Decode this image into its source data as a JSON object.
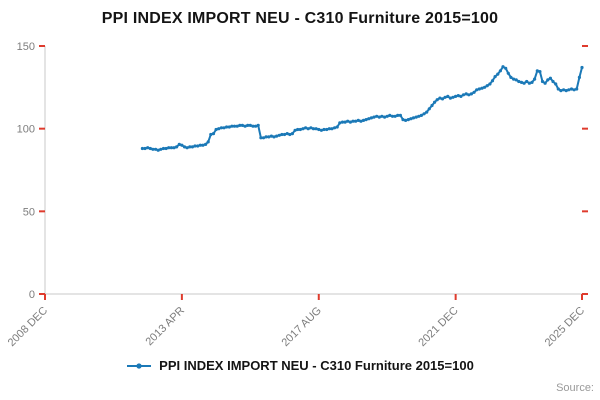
{
  "title": "PPI INDEX IMPORT NEU - C310 Furniture 2015=100",
  "legend": {
    "label": "PPI INDEX IMPORT NEU - C310 Furniture 2015=100"
  },
  "source": {
    "label": "Source:"
  },
  "chart_data": {
    "type": "line",
    "title": "PPI INDEX IMPORT NEU - C310 Furniture 2015=100",
    "xlabel": "",
    "ylabel": "",
    "ylim": [
      0,
      150
    ],
    "yticks": [
      0,
      50,
      100,
      150
    ],
    "grid": false,
    "legend_position": "bottom",
    "colors": {
      "line": "#1b79b7",
      "tick": "#df3b2d",
      "axis": "#c8c8c8",
      "label": "#7d7d7d"
    },
    "x_axis": {
      "start_date": "2008-12",
      "end_date": "2025-12",
      "total_months": 204
    },
    "xticks": [
      {
        "label": "2008 DEC",
        "date": "2008-12",
        "offset": 0
      },
      {
        "label": "2013 APR",
        "date": "2013-04",
        "offset": 52
      },
      {
        "label": "2017 AUG",
        "date": "2017-08",
        "offset": 104
      },
      {
        "label": "2021 DEC",
        "date": "2021-12",
        "offset": 156
      },
      {
        "label": "2025 DEC",
        "date": "2025-12",
        "offset": 204
      }
    ],
    "series": [
      {
        "name": "PPI INDEX IMPORT NEU - C310 Furniture 2015=100",
        "start_date": "2012-01",
        "start_month_offset": 37,
        "frequency": "monthly",
        "monthly_values": [
          88,
          88,
          88.5,
          88,
          87.5,
          87.5,
          87,
          87.5,
          88,
          88,
          88.5,
          88.5,
          88.5,
          89,
          90.5,
          90,
          89,
          88.5,
          89,
          89,
          89.5,
          89.5,
          90,
          90,
          90.5,
          92,
          96.5,
          97,
          99.5,
          100,
          100.5,
          100.5,
          101,
          101,
          101.5,
          101.5,
          101.5,
          102,
          102,
          101.5,
          102,
          102,
          101.5,
          101.5,
          102,
          94.5,
          94.5,
          95,
          95,
          95.5,
          95,
          95.5,
          96,
          96.5,
          96.5,
          97,
          96.5,
          97,
          99,
          99.5,
          99.5,
          100,
          100.5,
          100,
          100.5,
          100,
          100,
          99.5,
          99,
          99.5,
          99.5,
          100,
          100,
          100.5,
          101,
          103.5,
          104,
          104,
          104.5,
          104,
          104.5,
          104.5,
          105,
          104.5,
          105,
          105.5,
          106,
          106.5,
          107,
          107.5,
          107,
          107.5,
          107,
          107.5,
          108,
          107.5,
          107.5,
          108,
          108,
          105.5,
          105,
          105.5,
          106,
          106.5,
          107,
          107.5,
          108,
          109,
          110,
          112,
          114,
          116,
          117.5,
          118.5,
          118,
          119,
          119.5,
          118.5,
          119,
          119.5,
          120,
          119.5,
          120.5,
          121,
          120.5,
          121,
          122,
          123.5,
          124,
          124.5,
          125,
          126,
          127,
          129,
          131.5,
          133,
          135,
          137.5,
          136.5,
          133.5,
          131,
          130,
          129.5,
          128.5,
          128,
          127.5,
          128.5,
          127.5,
          128,
          130,
          135,
          134.5,
          128.5,
          127.5,
          129.5,
          130.5,
          128.5,
          127,
          124,
          123,
          123.5,
          123,
          123.5,
          124,
          123.5,
          124,
          131,
          137
        ]
      }
    ]
  }
}
